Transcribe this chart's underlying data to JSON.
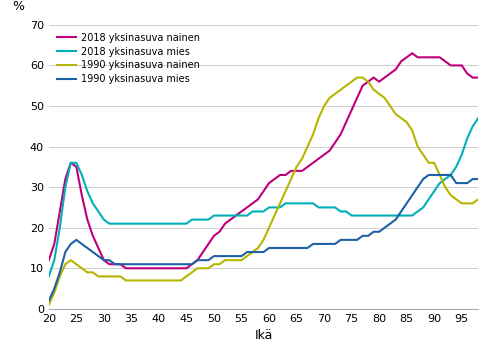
{
  "title": "",
  "ylabel": "%",
  "xlabel": "Ikä",
  "ylim": [
    0,
    70
  ],
  "yticks": [
    0,
    10,
    20,
    30,
    40,
    50,
    60,
    70
  ],
  "xticks": [
    20,
    25,
    30,
    35,
    40,
    45,
    50,
    55,
    60,
    65,
    70,
    75,
    80,
    85,
    90,
    95
  ],
  "xlim": [
    20,
    98
  ],
  "series": {
    "2018 yksinasuva nainen": {
      "color": "#be007c",
      "linewidth": 1.5,
      "x": [
        20,
        21,
        22,
        23,
        24,
        25,
        26,
        27,
        28,
        29,
        30,
        31,
        32,
        33,
        34,
        35,
        36,
        37,
        38,
        39,
        40,
        41,
        42,
        43,
        44,
        45,
        46,
        47,
        48,
        49,
        50,
        51,
        52,
        53,
        54,
        55,
        56,
        57,
        58,
        59,
        60,
        61,
        62,
        63,
        64,
        65,
        66,
        67,
        68,
        69,
        70,
        71,
        72,
        73,
        74,
        75,
        76,
        77,
        78,
        79,
        80,
        81,
        82,
        83,
        84,
        85,
        86,
        87,
        88,
        89,
        90,
        91,
        92,
        93,
        94,
        95,
        96,
        97,
        98
      ],
      "y": [
        12,
        16,
        24,
        32,
        36,
        35,
        28,
        22,
        18,
        15,
        12,
        11,
        11,
        11,
        10,
        10,
        10,
        10,
        10,
        10,
        10,
        10,
        10,
        10,
        10,
        10,
        11,
        12,
        14,
        16,
        18,
        19,
        21,
        22,
        23,
        24,
        25,
        26,
        27,
        29,
        31,
        32,
        33,
        33,
        34,
        34,
        34,
        35,
        36,
        37,
        38,
        39,
        41,
        43,
        46,
        49,
        52,
        55,
        56,
        57,
        56,
        57,
        58,
        59,
        61,
        62,
        63,
        62,
        62,
        62,
        62,
        62,
        61,
        60,
        60,
        60,
        58,
        57,
        57
      ]
    },
    "2018 yksinasuva mies": {
      "color": "#00b0b9",
      "linewidth": 1.5,
      "x": [
        20,
        21,
        22,
        23,
        24,
        25,
        26,
        27,
        28,
        29,
        30,
        31,
        32,
        33,
        34,
        35,
        36,
        37,
        38,
        39,
        40,
        41,
        42,
        43,
        44,
        45,
        46,
        47,
        48,
        49,
        50,
        51,
        52,
        53,
        54,
        55,
        56,
        57,
        58,
        59,
        60,
        61,
        62,
        63,
        64,
        65,
        66,
        67,
        68,
        69,
        70,
        71,
        72,
        73,
        74,
        75,
        76,
        77,
        78,
        79,
        80,
        81,
        82,
        83,
        84,
        85,
        86,
        87,
        88,
        89,
        90,
        91,
        92,
        93,
        94,
        95,
        96,
        97,
        98
      ],
      "y": [
        8,
        12,
        20,
        30,
        36,
        36,
        33,
        29,
        26,
        24,
        22,
        21,
        21,
        21,
        21,
        21,
        21,
        21,
        21,
        21,
        21,
        21,
        21,
        21,
        21,
        21,
        22,
        22,
        22,
        22,
        23,
        23,
        23,
        23,
        23,
        23,
        23,
        24,
        24,
        24,
        25,
        25,
        25,
        26,
        26,
        26,
        26,
        26,
        26,
        25,
        25,
        25,
        25,
        24,
        24,
        23,
        23,
        23,
        23,
        23,
        23,
        23,
        23,
        23,
        23,
        23,
        23,
        24,
        25,
        27,
        29,
        31,
        32,
        33,
        35,
        38,
        42,
        45,
        47
      ]
    },
    "1990 yksinasuva nainen": {
      "color": "#b5b500",
      "linewidth": 1.5,
      "x": [
        20,
        21,
        22,
        23,
        24,
        25,
        26,
        27,
        28,
        29,
        30,
        31,
        32,
        33,
        34,
        35,
        36,
        37,
        38,
        39,
        40,
        41,
        42,
        43,
        44,
        45,
        46,
        47,
        48,
        49,
        50,
        51,
        52,
        53,
        54,
        55,
        56,
        57,
        58,
        59,
        60,
        61,
        62,
        63,
        64,
        65,
        66,
        67,
        68,
        69,
        70,
        71,
        72,
        73,
        74,
        75,
        76,
        77,
        78,
        79,
        80,
        81,
        82,
        83,
        84,
        85,
        86,
        87,
        88,
        89,
        90,
        91,
        92,
        93,
        94,
        95,
        96,
        97,
        98
      ],
      "y": [
        1,
        4,
        8,
        11,
        12,
        11,
        10,
        9,
        9,
        8,
        8,
        8,
        8,
        8,
        7,
        7,
        7,
        7,
        7,
        7,
        7,
        7,
        7,
        7,
        7,
        8,
        9,
        10,
        10,
        10,
        11,
        11,
        12,
        12,
        12,
        12,
        13,
        14,
        15,
        17,
        20,
        23,
        26,
        29,
        32,
        35,
        37,
        40,
        43,
        47,
        50,
        52,
        53,
        54,
        55,
        56,
        57,
        57,
        56,
        54,
        53,
        52,
        50,
        48,
        47,
        46,
        44,
        40,
        38,
        36,
        36,
        33,
        30,
        28,
        27,
        26,
        26,
        26,
        27
      ]
    },
    "1990 yksinasuva mies": {
      "color": "#1f5fa6",
      "linewidth": 1.5,
      "x": [
        20,
        21,
        22,
        23,
        24,
        25,
        26,
        27,
        28,
        29,
        30,
        31,
        32,
        33,
        34,
        35,
        36,
        37,
        38,
        39,
        40,
        41,
        42,
        43,
        44,
        45,
        46,
        47,
        48,
        49,
        50,
        51,
        52,
        53,
        54,
        55,
        56,
        57,
        58,
        59,
        60,
        61,
        62,
        63,
        64,
        65,
        66,
        67,
        68,
        69,
        70,
        71,
        72,
        73,
        74,
        75,
        76,
        77,
        78,
        79,
        80,
        81,
        82,
        83,
        84,
        85,
        86,
        87,
        88,
        89,
        90,
        91,
        92,
        93,
        94,
        95,
        96,
        97,
        98
      ],
      "y": [
        2,
        5,
        9,
        14,
        16,
        17,
        16,
        15,
        14,
        13,
        12,
        12,
        11,
        11,
        11,
        11,
        11,
        11,
        11,
        11,
        11,
        11,
        11,
        11,
        11,
        11,
        11,
        12,
        12,
        12,
        13,
        13,
        13,
        13,
        13,
        13,
        14,
        14,
        14,
        14,
        15,
        15,
        15,
        15,
        15,
        15,
        15,
        15,
        16,
        16,
        16,
        16,
        16,
        17,
        17,
        17,
        17,
        18,
        18,
        19,
        19,
        20,
        21,
        22,
        24,
        26,
        28,
        30,
        32,
        33,
        33,
        33,
        33,
        33,
        31,
        31,
        31,
        32,
        32
      ]
    }
  },
  "legend_order": [
    "2018 yksinasuva nainen",
    "2018 yksinasuva mies",
    "1990 yksinasuva nainen",
    "1990 yksinasuva mies"
  ],
  "grid_color": "#c8c8c8",
  "background_color": "#ffffff"
}
